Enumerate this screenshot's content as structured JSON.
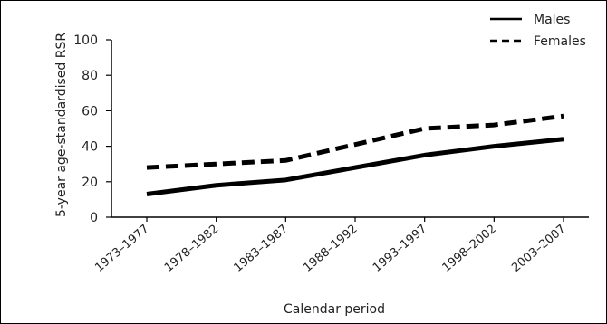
{
  "chart_data": {
    "type": "line",
    "categories": [
      "1973–1977",
      "1978–1982",
      "1983–1987",
      "1988–1992",
      "1993–1997",
      "1998–2002",
      "2003–2007"
    ],
    "series": [
      {
        "name": "Males",
        "values": [
          13,
          18,
          21,
          28,
          35,
          40,
          44
        ],
        "line_style": "solid",
        "color": "#000000"
      },
      {
        "name": "Females",
        "values": [
          28,
          30,
          32,
          41,
          50,
          52,
          57
        ],
        "line_style": "dashed",
        "color": "#000000"
      }
    ],
    "xlabel": "Calendar period",
    "ylabel": "5-year age-standardised RSR",
    "ylim": [
      0,
      100
    ],
    "yticks": [
      0,
      20,
      40,
      60,
      80,
      100
    ],
    "legend_position": "top-right",
    "grid": false
  }
}
